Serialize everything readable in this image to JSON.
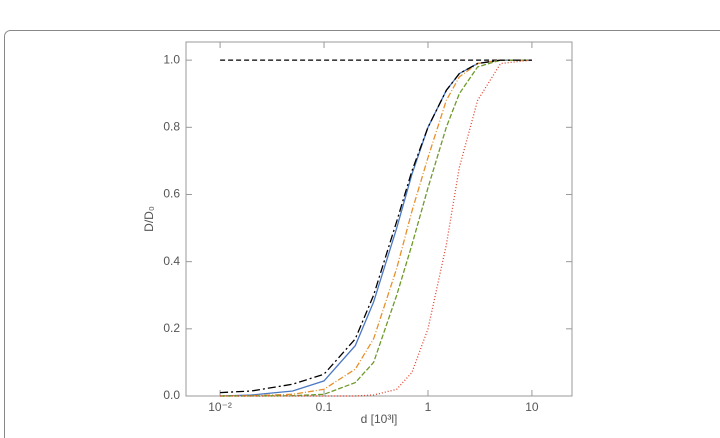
{
  "chart_data": {
    "type": "line",
    "xlabel": "d [10³l]",
    "ylabel": "D/D₀",
    "log_x": true,
    "xlim": [
      0.0047,
      24.3
    ],
    "ylim": [
      0,
      1.054
    ],
    "xticks": [
      {
        "value": 0.01,
        "label": "10⁻²"
      },
      0.1,
      1,
      10
    ],
    "yticks": [
      {
        "value": 0,
        "label": "0.0"
      },
      {
        "value": 0.2,
        "label": "0.2"
      },
      {
        "value": 0.4,
        "label": "0.4"
      },
      {
        "value": 0.6,
        "label": "0.6"
      },
      {
        "value": 0.8,
        "label": "0.8"
      },
      {
        "value": 1,
        "label": "1.0"
      }
    ],
    "x": [
      0.01,
      0.02,
      0.05,
      0.1,
      0.2,
      0.3,
      0.5,
      0.7,
      1,
      1.5,
      2,
      3,
      5,
      10
    ],
    "series": [
      {
        "color": "#000000",
        "dash": "5,3",
        "values": [
          1,
          1,
          1,
          1,
          1,
          1,
          1,
          1,
          1,
          1,
          1,
          1,
          1,
          1
        ]
      },
      {
        "color": "#4a78c2",
        "dash": "none",
        "values": [
          0.0,
          0.003,
          0.015,
          0.045,
          0.15,
          0.28,
          0.5,
          0.66,
          0.8,
          0.91,
          0.96,
          0.99,
          1,
          1
        ]
      },
      {
        "color": "#e8902a",
        "dash": "6,2,1,2",
        "values": [
          0.0,
          0.001,
          0.005,
          0.02,
          0.08,
          0.17,
          0.38,
          0.55,
          0.71,
          0.88,
          0.95,
          0.99,
          1,
          1
        ]
      },
      {
        "color": "#6e9a2a",
        "dash": "5,2",
        "values": [
          0.0,
          0.0,
          0.001,
          0.005,
          0.04,
          0.1,
          0.3,
          0.45,
          0.62,
          0.8,
          0.9,
          0.98,
          1,
          1
        ]
      },
      {
        "color": "#e0402a",
        "dash": "1,2",
        "values": [
          0.0,
          0.0,
          0.0,
          0.0,
          0.0,
          0.003,
          0.02,
          0.07,
          0.2,
          0.45,
          0.68,
          0.88,
          0.99,
          1
        ]
      },
      {
        "color": "#000000",
        "dash": "8,3,2,3",
        "values": [
          0.01,
          0.015,
          0.035,
          0.065,
          0.17,
          0.3,
          0.52,
          0.67,
          0.8,
          0.91,
          0.96,
          0.99,
          1,
          1
        ]
      }
    ]
  }
}
